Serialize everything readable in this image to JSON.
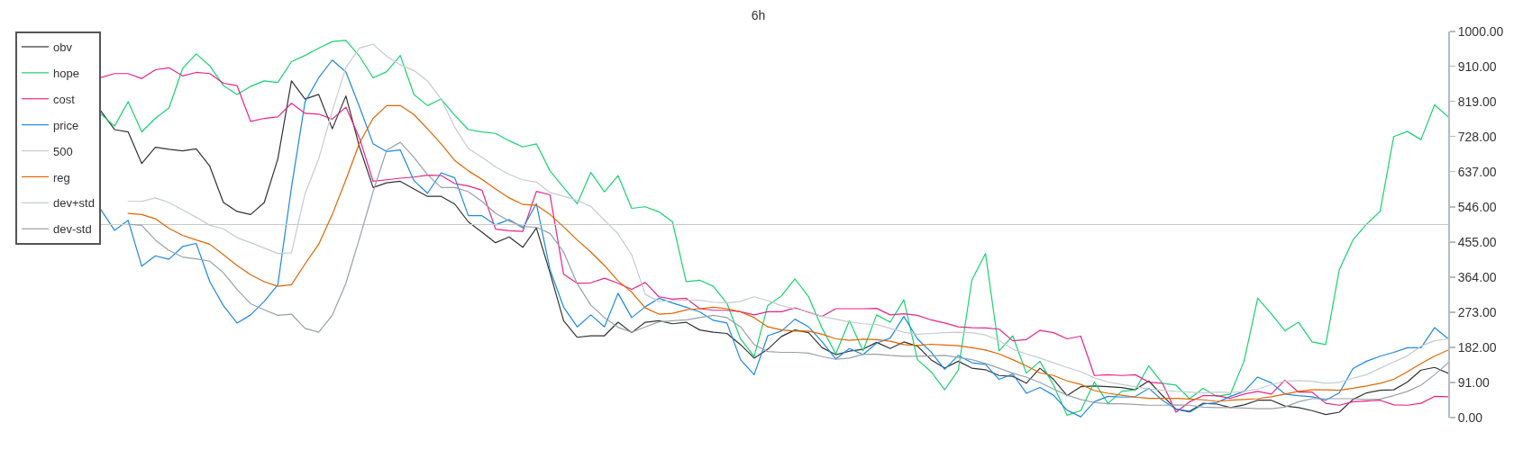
{
  "chart_data": {
    "type": "line",
    "title": "6h",
    "categories": [
      null,
      null,
      null,
      null,
      null,
      null,
      null,
      null,
      null,
      null,
      null,
      null,
      null,
      null,
      null,
      null,
      null,
      null,
      null,
      null,
      null,
      null,
      null,
      null,
      null,
      null,
      null,
      null,
      null,
      null,
      null,
      null,
      null,
      null,
      null,
      null,
      null,
      null,
      null,
      null,
      null,
      null,
      null,
      null,
      null,
      null,
      null,
      null,
      null,
      null,
      null,
      null,
      null,
      null,
      null,
      null,
      null,
      null,
      null,
      null,
      null,
      null,
      null,
      null,
      null,
      null,
      null,
      null,
      null,
      null,
      null,
      null,
      null,
      null,
      null,
      null,
      null,
      null,
      null,
      null,
      null,
      null,
      null,
      null,
      null,
      null,
      null,
      null,
      null,
      null,
      null,
      null,
      null,
      null,
      null,
      null,
      null,
      null,
      null,
      null
    ],
    "series": [
      {
        "name": "obv",
        "color": "#333333",
        "values": [
          794,
          746,
          740,
          658,
          700,
          695,
          691,
          696,
          651,
          557,
          534,
          526,
          557,
          670,
          872,
          825,
          837,
          748,
          833,
          701,
          596,
          608,
          612,
          592,
          573,
          573,
          553,
          507,
          480,
          453,
          468,
          441,
          491,
          375,
          251,
          208,
          212,
          212,
          247,
          220,
          247,
          251,
          243,
          247,
          227,
          221,
          218,
          189,
          154,
          177,
          210,
          227,
          220,
          181,
          163,
          172,
          177,
          195,
          179,
          196,
          185,
          150,
          128,
          146,
          128,
          124,
          109,
          107,
          89,
          128,
          99,
          57,
          80,
          82,
          80,
          78,
          72,
          95,
          57,
          22,
          16,
          37,
          35,
          26,
          33,
          45,
          45,
          30,
          26,
          18,
          8,
          14,
          47,
          64,
          71,
          72,
          92,
          123,
          130,
          115
        ]
      },
      {
        "name": "hope",
        "color": "#19d26e",
        "values": [
          786,
          755,
          818,
          740,
          775,
          802,
          904,
          942,
          911,
          860,
          837,
          858,
          872,
          868,
          922,
          938,
          957,
          974,
          977,
          936,
          880,
          896,
          938,
          837,
          808,
          825,
          783,
          746,
          740,
          736,
          717,
          701,
          709,
          639,
          596,
          554,
          635,
          585,
          627,
          542,
          546,
          533,
          507,
          352,
          356,
          340,
          296,
          204,
          158,
          290,
          315,
          359,
          313,
          231,
          165,
          251,
          173,
          266,
          247,
          305,
          150,
          119,
          72,
          123,
          356,
          425,
          173,
          212,
          115,
          146,
          84,
          6,
          18,
          92,
          37,
          68,
          72,
          134,
          89,
          84,
          49,
          76,
          55,
          61,
          146,
          309,
          269,
          225,
          247,
          196,
          189,
          383,
          460,
          501,
          534,
          728,
          741,
          720,
          810,
          779
        ]
      },
      {
        "name": "cost",
        "color": "#e8258a",
        "values": [
          881,
          891,
          891,
          878,
          901,
          906,
          885,
          894,
          891,
          866,
          860,
          767,
          775,
          779,
          814,
          788,
          786,
          773,
          804,
          724,
          612,
          616,
          620,
          623,
          628,
          627,
          606,
          600,
          589,
          488,
          484,
          482,
          586,
          577,
          371,
          348,
          349,
          361,
          348,
          332,
          350,
          313,
          307,
          309,
          282,
          278,
          278,
          274,
          266,
          274,
          274,
          284,
          273,
          262,
          282,
          282,
          282,
          283,
          266,
          269,
          265,
          253,
          245,
          235,
          233,
          232,
          229,
          199,
          202,
          226,
          220,
          204,
          211,
          109,
          111,
          109,
          111,
          92,
          89,
          14,
          41,
          57,
          57,
          50,
          61,
          68,
          61,
          97,
          66,
          66,
          37,
          32,
          41,
          43,
          45,
          33,
          32,
          37,
          55,
          54
        ]
      },
      {
        "name": "price",
        "color": "#1e88e5",
        "values": [
          538,
          485,
          511,
          392,
          419,
          410,
          443,
          451,
          352,
          290,
          245,
          266,
          301,
          344,
          596,
          818,
          880,
          926,
          895,
          805,
          709,
          689,
          693,
          614,
          581,
          634,
          621,
          523,
          523,
          499,
          513,
          491,
          554,
          383,
          286,
          235,
          266,
          235,
          322,
          259,
          287,
          309,
          297,
          286,
          274,
          252,
          245,
          150,
          111,
          212,
          224,
          255,
          235,
          196,
          152,
          179,
          163,
          193,
          206,
          262,
          204,
          170,
          125,
          161,
          142,
          138,
          99,
          113,
          63,
          78,
          58,
          19,
          2,
          41,
          55,
          53,
          54,
          76,
          45,
          22,
          14,
          35,
          39,
          55,
          68,
          105,
          90,
          61,
          57,
          54,
          45,
          64,
          127,
          146,
          159,
          169,
          181,
          181,
          233,
          204
        ]
      },
      {
        "name": "500",
        "color": "#c8c8c8",
        "values": [
          500,
          500,
          500,
          500,
          500,
          500,
          500,
          500,
          500,
          500,
          500,
          500,
          500,
          500,
          500,
          500,
          500,
          500,
          500,
          500,
          500,
          500,
          500,
          500,
          500,
          500,
          500,
          500,
          500,
          500,
          500,
          500,
          500,
          500,
          500,
          500,
          500,
          500,
          500,
          500,
          500,
          500,
          500,
          500,
          500,
          500,
          500,
          500,
          500,
          500,
          500,
          500,
          500,
          500,
          500,
          500,
          500,
          500,
          500,
          500,
          500,
          500,
          500,
          500,
          500,
          500,
          500,
          500,
          500,
          500,
          500,
          500,
          500,
          500,
          500,
          500,
          500,
          500,
          500,
          500,
          500,
          500,
          500,
          500,
          500,
          500,
          500,
          500,
          500,
          500,
          500,
          500,
          500,
          500,
          500,
          500,
          500,
          500,
          500,
          500
        ]
      },
      {
        "name": "reg",
        "color": "#e06500",
        "values": [
          null,
          null,
          529,
          526,
          515,
          490,
          472,
          460,
          449,
          422,
          394,
          370,
          352,
          340,
          344,
          398,
          449,
          526,
          616,
          711,
          775,
          808,
          808,
          785,
          748,
          709,
          666,
          639,
          617,
          592,
          569,
          552,
          550,
          526,
          494,
          460,
          429,
          394,
          354,
          325,
          284,
          268,
          270,
          279,
          282,
          286,
          282,
          274,
          259,
          235,
          227,
          224,
          224,
          216,
          204,
          200,
          203,
          202,
          198,
          189,
          187,
          190,
          188,
          186,
          181,
          175,
          165,
          150,
          134,
          116,
          109,
          95,
          86,
          70,
          63,
          58,
          53,
          50,
          50,
          50,
          48,
          46,
          42,
          45,
          47,
          49,
          54,
          61,
          68,
          72,
          72,
          71,
          76,
          82,
          89,
          99,
          119,
          140,
          159,
          175
        ]
      },
      {
        "name": "dev+std",
        "color": "#c5cbd1",
        "values": [
          null,
          null,
          560,
          560,
          569,
          557,
          538,
          519,
          498,
          489,
          466,
          453,
          439,
          425,
          427,
          580,
          670,
          794,
          907,
          957,
          967,
          936,
          914,
          899,
          872,
          825,
          752,
          697,
          674,
          649,
          630,
          616,
          610,
          583,
          573,
          563,
          547,
          511,
          476,
          422,
          319,
          301,
          303,
          304,
          304,
          299,
          297,
          301,
          313,
          303,
          290,
          282,
          274,
          262,
          255,
          248,
          243,
          241,
          231,
          221,
          216,
          218,
          220,
          221,
          220,
          214,
          200,
          177,
          165,
          154,
          142,
          130,
          119,
          103,
          92,
          86,
          80,
          74,
          71,
          68,
          66,
          64,
          66,
          65,
          68,
          74,
          85,
          94,
          96,
          94,
          89,
          91,
          102,
          111,
          128,
          144,
          160,
          185,
          199,
          204
        ]
      },
      {
        "name": "dev-std",
        "color": "#98a1a9",
        "values": [
          null,
          null,
          501,
          498,
          460,
          433,
          416,
          411,
          405,
          375,
          332,
          295,
          279,
          265,
          268,
          231,
          221,
          265,
          348,
          464,
          585,
          693,
          713,
          674,
          629,
          596,
          596,
          585,
          560,
          529,
          509,
          495,
          493,
          477,
          429,
          347,
          291,
          259,
          234,
          221,
          235,
          248,
          251,
          253,
          259,
          265,
          259,
          235,
          189,
          171,
          169,
          169,
          167,
          158,
          151,
          154,
          164,
          164,
          161,
          159,
          159,
          160,
          161,
          156,
          150,
          140,
          128,
          115,
          105,
          91,
          74,
          58,
          47,
          39,
          36,
          36,
          34,
          32,
          32,
          33,
          32,
          27,
          26,
          26,
          25,
          23,
          23,
          27,
          41,
          49,
          49,
          49,
          49,
          47,
          48,
          57,
          68,
          84,
          111,
          142
        ]
      }
    ],
    "ylim": [
      0,
      1000
    ],
    "yticks": [
      {
        "value": 0,
        "label": "0.00"
      },
      {
        "value": 91,
        "label": "91.00"
      },
      {
        "value": 182,
        "label": "182.00"
      },
      {
        "value": 273,
        "label": "273.00"
      },
      {
        "value": 364,
        "label": "364.00"
      },
      {
        "value": 455,
        "label": "455.00"
      },
      {
        "value": 546,
        "label": "546.00"
      },
      {
        "value": 637,
        "label": "637.00"
      },
      {
        "value": 728,
        "label": "728.00"
      },
      {
        "value": 819,
        "label": "819.00"
      },
      {
        "value": 910,
        "label": "910.00"
      },
      {
        "value": 1000,
        "label": "1000.00"
      }
    ],
    "tick_labels": "y",
    "legend": "top left"
  }
}
